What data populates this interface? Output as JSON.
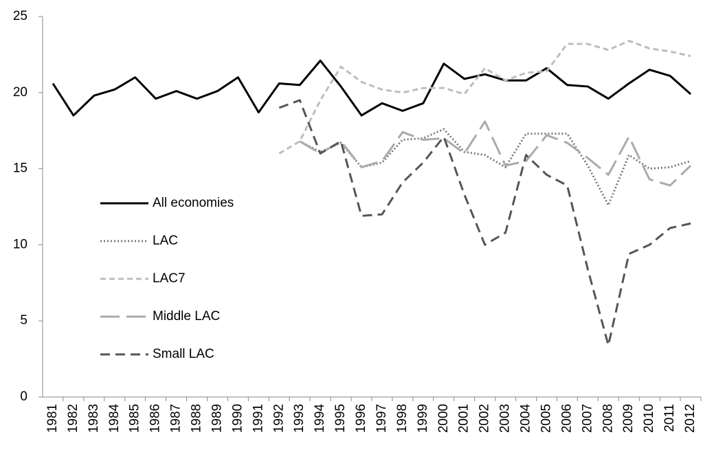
{
  "chart_data": {
    "type": "line",
    "categories": [
      "1981",
      "1982",
      "1983",
      "1984",
      "1985",
      "1986",
      "1987",
      "1988",
      "1989",
      "1990",
      "1991",
      "1992",
      "1993",
      "1994",
      "1995",
      "1996",
      "1997",
      "1998",
      "1999",
      "2000",
      "2001",
      "2002",
      "2003",
      "2004",
      "2005",
      "2006",
      "2007",
      "2008",
      "2009",
      "2010",
      "2011",
      "2012"
    ],
    "series": [
      {
        "name": "All economies",
        "color": "#000000",
        "dash": "solid",
        "values": [
          20.6,
          18.5,
          19.8,
          20.2,
          21.0,
          19.6,
          20.1,
          19.6,
          20.1,
          21.0,
          18.7,
          20.6,
          20.5,
          22.1,
          20.4,
          18.5,
          19.3,
          18.8,
          19.3,
          21.9,
          20.9,
          21.2,
          20.8,
          20.8,
          21.6,
          20.5,
          20.4,
          19.6,
          20.6,
          21.5,
          21.1,
          19.9
        ]
      },
      {
        "name": "LAC",
        "color": "#7a7a7a",
        "dash": "dotted",
        "values": [
          null,
          null,
          null,
          null,
          null,
          null,
          null,
          null,
          null,
          null,
          null,
          null,
          16.8,
          16.1,
          16.7,
          15.1,
          15.4,
          16.9,
          17.0,
          17.6,
          16.1,
          15.9,
          15.1,
          17.3,
          17.3,
          17.3,
          15.2,
          12.6,
          15.9,
          15.0,
          15.1,
          15.5
        ]
      },
      {
        "name": "LAC7",
        "color": "#bdbdbd",
        "dash": "short",
        "values": [
          null,
          null,
          null,
          null,
          null,
          null,
          null,
          null,
          null,
          null,
          null,
          16.0,
          16.8,
          19.5,
          21.7,
          20.7,
          20.2,
          20.0,
          20.3,
          20.3,
          19.9,
          21.6,
          20.8,
          21.3,
          21.4,
          23.2,
          23.2,
          22.8,
          23.4,
          22.9,
          22.7,
          22.4
        ]
      },
      {
        "name": "Middle LAC",
        "color": "#aaaaaa",
        "dash": "long",
        "values": [
          null,
          null,
          null,
          null,
          null,
          null,
          null,
          null,
          null,
          null,
          null,
          null,
          16.8,
          16.0,
          16.8,
          15.1,
          15.5,
          17.4,
          16.9,
          17.0,
          16.0,
          18.1,
          15.2,
          15.5,
          17.2,
          16.7,
          15.7,
          14.6,
          17.1,
          14.3,
          13.9,
          15.2
        ]
      },
      {
        "name": "Small LAC",
        "color": "#555555",
        "dash": "dashed",
        "values": [
          null,
          null,
          null,
          null,
          null,
          null,
          null,
          null,
          null,
          null,
          null,
          19.0,
          19.5,
          16.0,
          16.8,
          11.9,
          12.0,
          14.1,
          15.4,
          17.1,
          13.3,
          10.0,
          10.8,
          15.9,
          14.6,
          13.9,
          8.4,
          3.4,
          9.4,
          10.0,
          11.1,
          11.4
        ]
      }
    ],
    "ylim": [
      0,
      25
    ],
    "yticks": [
      0,
      5,
      10,
      15,
      20,
      25
    ],
    "grid": false,
    "legend": "left"
  }
}
